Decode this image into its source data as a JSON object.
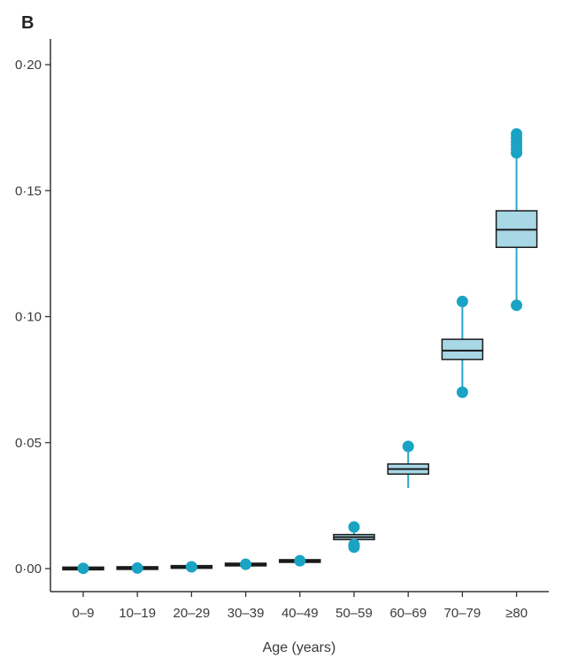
{
  "chart_data": {
    "type": "box",
    "panel_label": "B",
    "title": "",
    "xlabel": "Age (years)",
    "ylabel": "",
    "ylim": [
      0,
      0.2
    ],
    "yticks": [
      {
        "value": 0,
        "label": "0·00"
      },
      {
        "value": 0.05,
        "label": "0·05"
      },
      {
        "value": 0.1,
        "label": "0·10"
      },
      {
        "value": 0.15,
        "label": "0·15"
      },
      {
        "value": 0.2,
        "label": "0·20"
      }
    ],
    "grid": false,
    "colors": {
      "box_fill": "#a8d7e6",
      "whisker": "#2aa6c8",
      "outlier": "#1ba3c4",
      "median": "#1a1a1a"
    },
    "categories": [
      "0–9",
      "10–19",
      "20–29",
      "30–39",
      "40–49",
      "50–59",
      "60–69",
      "70–79",
      "≥80"
    ],
    "boxes": [
      {
        "category": "0–9",
        "q1": 0.0,
        "median": 0.0,
        "q3": 0.0001,
        "whisker_low": 0.0,
        "whisker_high": 0.0001,
        "outliers": [
          0.0001
        ]
      },
      {
        "category": "10–19",
        "q1": 0.0001,
        "median": 0.0002,
        "q3": 0.0003,
        "whisker_low": 0.0001,
        "whisker_high": 0.0003,
        "outliers": [
          0.0002
        ]
      },
      {
        "category": "20–29",
        "q1": 0.0005,
        "median": 0.0006,
        "q3": 0.0008,
        "whisker_low": 0.0004,
        "whisker_high": 0.0009,
        "outliers": [
          0.0007
        ]
      },
      {
        "category": "30–39",
        "q1": 0.0014,
        "median": 0.0016,
        "q3": 0.0018,
        "whisker_low": 0.0012,
        "whisker_high": 0.002,
        "outliers": [
          0.0017
        ]
      },
      {
        "category": "40–49",
        "q1": 0.0027,
        "median": 0.003,
        "q3": 0.0033,
        "whisker_low": 0.0024,
        "whisker_high": 0.0036,
        "outliers": [
          0.0031
        ]
      },
      {
        "category": "50–59",
        "q1": 0.0115,
        "median": 0.0125,
        "q3": 0.0135,
        "whisker_low": 0.01,
        "whisker_high": 0.015,
        "outliers": [
          0.0085,
          0.0095,
          0.0165
        ]
      },
      {
        "category": "60–69",
        "q1": 0.0375,
        "median": 0.0395,
        "q3": 0.0415,
        "whisker_low": 0.032,
        "whisker_high": 0.047,
        "outliers": [
          0.0485
        ]
      },
      {
        "category": "70–79",
        "q1": 0.083,
        "median": 0.0865,
        "q3": 0.091,
        "whisker_low": 0.071,
        "whisker_high": 0.104,
        "outliers": [
          0.07,
          0.106
        ]
      },
      {
        "category": "≥80",
        "q1": 0.1275,
        "median": 0.1345,
        "q3": 0.142,
        "whisker_low": 0.106,
        "whisker_high": 0.164,
        "outliers": [
          0.1045,
          0.165,
          0.1665,
          0.168,
          0.1695,
          0.171,
          0.1725
        ]
      }
    ]
  }
}
